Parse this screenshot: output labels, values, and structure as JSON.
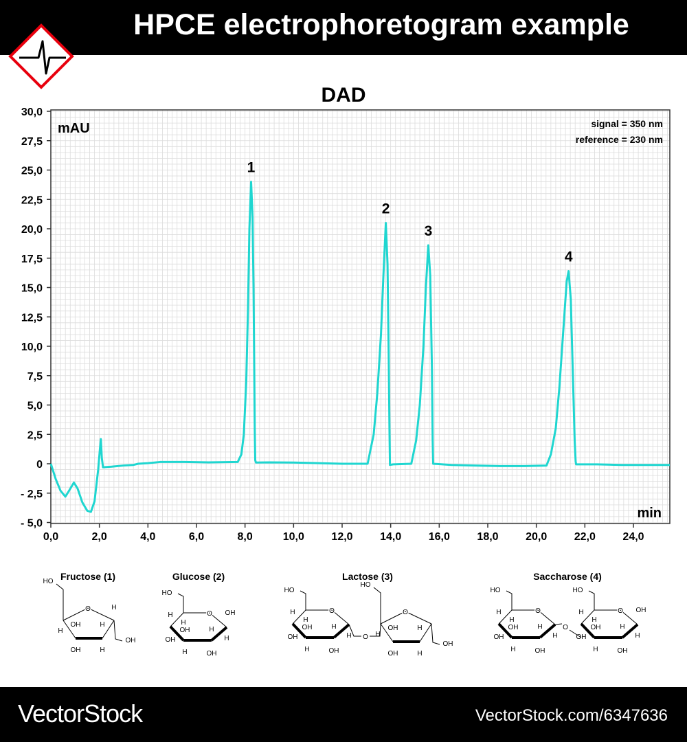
{
  "header": {
    "title": "HPCE electrophoretogram example",
    "logo": "ecg-pulse-diamond-icon"
  },
  "colors": {
    "trace": "#1fd6d0",
    "logo_border": "#e8000d",
    "grid": "#dcdcdc"
  },
  "chart_data": {
    "type": "line",
    "title": "DAD",
    "ylabel": "mAU",
    "xlabel": "min",
    "annotations": [
      "signal = 350 nm",
      "reference = 230 nm"
    ],
    "xlim": [
      0,
      25.5
    ],
    "ylim": [
      -5,
      30
    ],
    "grid": true,
    "xticks": [
      "0,0",
      "2,0",
      "4,0",
      "6,0",
      "8,0",
      "10,0",
      "12,0",
      "14,0",
      "16,0",
      "18,0",
      "20,0",
      "22,0",
      "24,0"
    ],
    "yticks": [
      "- 5,0",
      "- 2,5",
      "0",
      "2,5",
      "5,0",
      "7,5",
      "10,0",
      "12,5",
      "15,0",
      "17,5",
      "20,0",
      "22,5",
      "25,0",
      "27,5",
      "30,0"
    ],
    "peaks": [
      {
        "label": "1",
        "x": 8.25,
        "y": 24.0
      },
      {
        "label": "2",
        "x": 13.8,
        "y": 20.5
      },
      {
        "label": "3",
        "x": 15.55,
        "y": 18.6
      },
      {
        "label": "4",
        "x": 21.33,
        "y": 16.4
      }
    ],
    "series": [
      {
        "x": [
          0,
          0.2,
          0.4,
          0.6,
          0.75,
          0.95,
          1.1,
          1.3,
          1.5,
          1.65,
          1.8,
          1.95,
          2.02,
          2.06,
          2.1,
          2.15,
          2.5,
          3.0,
          3.4,
          3.6,
          4.0,
          4.5,
          5.5,
          6.5,
          7.7,
          7.85,
          7.95,
          8.05,
          8.12,
          8.18,
          8.25,
          8.31,
          8.35,
          8.38,
          8.4,
          8.42,
          8.45,
          9.0,
          10.0,
          11.0,
          12.0,
          13.05,
          13.3,
          13.45,
          13.6,
          13.7,
          13.8,
          13.87,
          13.92,
          13.95,
          13.97,
          14.1,
          14.85,
          15.05,
          15.2,
          15.35,
          15.45,
          15.55,
          15.63,
          15.7,
          15.73,
          15.75,
          16.5,
          17.5,
          18.5,
          19.5,
          20.42,
          20.6,
          20.8,
          20.95,
          21.1,
          21.25,
          21.33,
          21.42,
          21.5,
          21.58,
          21.62,
          21.64,
          22.5,
          23.5,
          24.5,
          25.5
        ],
        "y": [
          0,
          -1.3,
          -2.3,
          -2.8,
          -2.3,
          -1.6,
          -2.1,
          -3.3,
          -4.0,
          -4.1,
          -3.2,
          -0.5,
          1.2,
          2.1,
          0.5,
          -0.3,
          -0.25,
          -0.15,
          -0.1,
          0.0,
          0.05,
          0.15,
          0.15,
          0.12,
          0.15,
          0.8,
          2.5,
          7,
          13,
          20,
          24,
          21,
          15,
          8,
          3,
          0.3,
          0.1,
          0.12,
          0.1,
          0.05,
          0.0,
          0.0,
          2.5,
          6,
          11,
          16,
          20.5,
          17,
          9,
          3,
          -0.1,
          -0.05,
          0.0,
          2,
          5,
          10,
          15,
          18.6,
          16,
          8,
          2,
          0.0,
          -0.1,
          -0.15,
          -0.2,
          -0.2,
          -0.15,
          0.8,
          3,
          6.5,
          11,
          15.5,
          16.4,
          14,
          8,
          2,
          0.2,
          -0.05,
          -0.05,
          -0.1,
          -0.1,
          -0.1
        ]
      }
    ]
  },
  "structures": [
    {
      "name": "Fructose (1)",
      "ring": "furanose",
      "labels": [
        "HO",
        "O",
        "H",
        "H",
        "OH",
        "OH",
        "H",
        "H",
        "OH"
      ]
    },
    {
      "name": "Glucose (2)",
      "ring": "pyranose",
      "labels": [
        "HO",
        "O",
        "OH",
        "H",
        "H",
        "OH",
        "OH",
        "H",
        "H",
        "OH",
        "H"
      ]
    },
    {
      "name": "Lactose (3)",
      "rings": [
        {
          "ring": "pyranose",
          "labels": [
            "HO",
            "O",
            "",
            "H",
            "H",
            "OH",
            "OH",
            "H",
            "H",
            "OH",
            "H"
          ]
        },
        {
          "ring": "furanose",
          "labels": [
            "HO",
            "O",
            "",
            "H",
            "OH",
            "OH",
            "H",
            "H",
            "OH"
          ]
        }
      ],
      "link": "O"
    },
    {
      "name": "Saccharose (4)",
      "rings": [
        {
          "ring": "pyranose",
          "labels": [
            "HO",
            "O",
            "",
            "H",
            "H",
            "OH",
            "OH",
            "H",
            "H",
            "OH",
            "H"
          ]
        },
        {
          "ring": "pyranose",
          "labels": [
            "HO",
            "O",
            "OH",
            "H",
            "H",
            "OH",
            "OH",
            "H",
            "H",
            "OH",
            "H"
          ]
        }
      ],
      "link": "O"
    }
  ],
  "footer": {
    "brand": "VectorStock",
    "brand_mark": "®",
    "url": "VectorStock.com/6347636"
  }
}
